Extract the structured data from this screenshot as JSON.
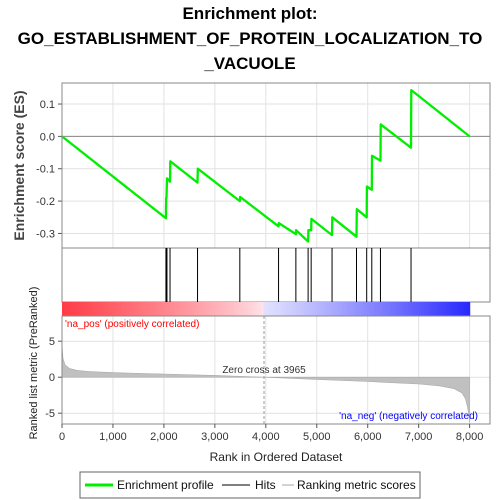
{
  "chart_data": {
    "type": "line",
    "title_lines": [
      "Enrichment plot:",
      "GO_ESTABLISHMENT_OF_PROTEIN_LOCALIZATION_TO",
      "_VACUOLE"
    ],
    "es_panel": {
      "ylabel": "Enrichment score (ES)",
      "ylim": [
        -0.345,
        0.165
      ],
      "yticks": [
        0.1,
        0.0,
        -0.1,
        -0.2,
        -0.3
      ],
      "ytick_labels": [
        "0.1",
        "0.0",
        "-0.1",
        "-0.2",
        "-0.3"
      ],
      "zero_line": true,
      "series": [
        {
          "name": "Enrichment profile",
          "color": "#00ee00",
          "x": [
            0,
            2040,
            2045,
            2050,
            2060,
            2120,
            2125,
            2660,
            2665,
            3490,
            3495,
            4250,
            4255,
            4590,
            4595,
            4830,
            4835,
            4890,
            4895,
            5300,
            5305,
            5780,
            5785,
            5980,
            5985,
            6080,
            6085,
            6250,
            6255,
            6850,
            6855,
            8000
          ],
          "y": [
            0.0,
            -0.253,
            -0.19,
            -0.19,
            -0.13,
            -0.14,
            -0.077,
            -0.143,
            -0.1,
            -0.2,
            -0.187,
            -0.278,
            -0.268,
            -0.302,
            -0.29,
            -0.325,
            -0.29,
            -0.29,
            -0.255,
            -0.305,
            -0.25,
            -0.31,
            -0.225,
            -0.25,
            -0.155,
            -0.165,
            -0.06,
            -0.075,
            0.037,
            -0.035,
            0.143,
            0.0
          ]
        }
      ]
    },
    "hits": {
      "name": "Hits",
      "color": "#000000",
      "x": [
        2040,
        2050,
        2060,
        2120,
        2660,
        3490,
        4250,
        4590,
        4830,
        4890,
        5300,
        5780,
        5980,
        6080,
        6250,
        6850
      ]
    },
    "metric_panel": {
      "ylabel": "Ranked list metric (PreRanked)",
      "xlabel": "Rank in Ordered Dataset",
      "ylim": [
        -6.5,
        8.5
      ],
      "yticks": [
        5,
        0,
        -5
      ],
      "ytick_labels": [
        "5",
        "0",
        "-5"
      ],
      "xlim": [
        0,
        8400
      ],
      "xticks": [
        0,
        1000,
        2000,
        3000,
        4000,
        5000,
        6000,
        7000,
        8000
      ],
      "xtick_labels": [
        "0",
        "1,000",
        "2,000",
        "3,000",
        "4,000",
        "5,000",
        "6,000",
        "7,000",
        "8,000"
      ],
      "series_name": "Ranking metric scores",
      "fill_color": "#c0c0c0",
      "zero_cross_rank": 3965,
      "zero_cross_label": "Zero cross at 3965",
      "pos_label": "'na_pos' (positively correlated)",
      "neg_label": "'na_neg' (negatively correlated)",
      "pos_color": "#ff0000",
      "neg_color": "#0000ff",
      "profile": {
        "x": [
          0,
          20,
          60,
          150,
          300,
          500,
          800,
          1200,
          2000,
          3000,
          3965,
          5000,
          6000,
          7000,
          7400,
          7700,
          7850,
          7920,
          7960,
          7990,
          8000
        ],
        "y": [
          4.5,
          2.6,
          1.7,
          1.2,
          0.95,
          0.8,
          0.7,
          0.6,
          0.45,
          0.25,
          0.0,
          -0.3,
          -0.6,
          -0.95,
          -1.2,
          -1.6,
          -2.2,
          -3.0,
          -4.2,
          -5.6,
          -6.3
        ]
      }
    },
    "legend": {
      "placement": "bottom",
      "entries": [
        {
          "label": "Enrichment profile",
          "color": "#00ee00",
          "kind": "line"
        },
        {
          "label": "Hits",
          "color": "#808080",
          "kind": "line"
        },
        {
          "label": "Ranking metric scores",
          "color": "#d3d3d3",
          "kind": "line"
        }
      ]
    }
  }
}
